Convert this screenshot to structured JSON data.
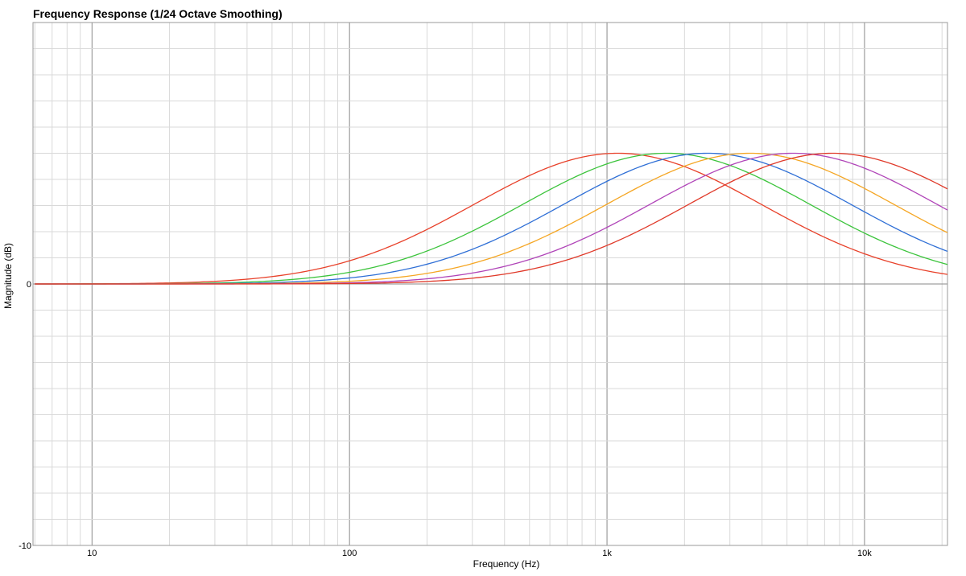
{
  "chart_data": {
    "type": "line",
    "title": "Frequency Response (1/24 Octave Smoothing)",
    "xlabel": "Frequency (Hz)",
    "ylabel": "Magnitude (dB)",
    "x_scale": "log",
    "xlim": [
      5.9,
      21000
    ],
    "ylim": [
      -10,
      10
    ],
    "grid": true,
    "x_ticks": [
      {
        "value": 10,
        "label": "10"
      },
      {
        "value": 100,
        "label": "100"
      },
      {
        "value": 1000,
        "label": "1k"
      },
      {
        "value": 10000,
        "label": "10k"
      }
    ],
    "y_ticks": [
      {
        "value": 0,
        "label": "0"
      },
      {
        "value": -10,
        "label": "-10"
      }
    ],
    "x_range_data": [
      6,
      21000
    ],
    "series": [
      {
        "color": "#e8412a",
        "center_hz": 1100,
        "peak_db": 5.0,
        "width_decades": 0.56
      },
      {
        "color": "#3cc43c",
        "center_hz": 1700,
        "peak_db": 5.0,
        "width_decades": 0.56
      },
      {
        "color": "#2f6fd6",
        "center_hz": 2450,
        "peak_db": 5.0,
        "width_decades": 0.56
      },
      {
        "color": "#f5a623",
        "center_hz": 3600,
        "peak_db": 5.0,
        "width_decades": 0.56
      },
      {
        "color": "#b044b8",
        "center_hz": 5300,
        "peak_db": 5.0,
        "width_decades": 0.56
      },
      {
        "color": "#e03a2a",
        "center_hz": 7500,
        "peak_db": 5.0,
        "width_decades": 0.56
      }
    ]
  }
}
